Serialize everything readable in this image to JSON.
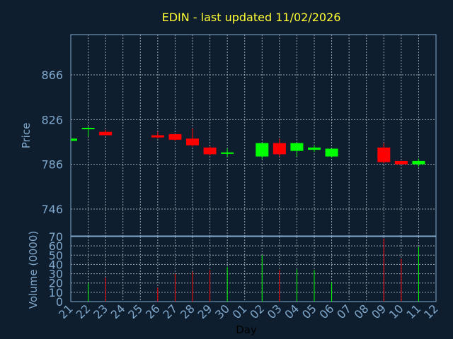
{
  "chart_data": {
    "type": "candlestick",
    "title": "EDIN - last updated 11/02/2026",
    "xlabel": "Day",
    "price_panel": {
      "ylabel": "Price",
      "ylim": [
        722,
        902
      ],
      "yticks": [
        746,
        786,
        826,
        866
      ]
    },
    "volume_panel": {
      "ylabel": "Volume (0000)",
      "ylim": [
        0,
        70
      ],
      "yticks": [
        0,
        10,
        20,
        30,
        40,
        50,
        60,
        70
      ]
    },
    "x_ticks": [
      "21",
      "22",
      "23",
      "24",
      "25",
      "26",
      "27",
      "28",
      "29",
      "30",
      "01",
      "02",
      "03",
      "04",
      "05",
      "06",
      "07",
      "08",
      "09",
      "10",
      "11",
      "12"
    ],
    "colors": {
      "up": "#00ff00",
      "down": "#ff0000",
      "background": "#0f1e2f",
      "title": "#ffff33",
      "axis": "#7fa8cc"
    },
    "candles": [
      {
        "x": 0,
        "open": 807,
        "high": 809,
        "low": 806,
        "close": 809,
        "volume": 0
      },
      {
        "x": 1,
        "open": 817,
        "high": 820,
        "low": 811,
        "close": 818,
        "volume": 20
      },
      {
        "x": 2,
        "open": 815,
        "high": 817,
        "low": 812,
        "close": 812,
        "volume": 26
      },
      {
        "x": 5,
        "open": 812,
        "high": 815,
        "low": 809,
        "close": 810,
        "volume": 15
      },
      {
        "x": 6,
        "open": 813,
        "high": 813,
        "low": 807,
        "close": 808,
        "volume": 30
      },
      {
        "x": 7,
        "open": 809,
        "high": 818,
        "low": 802,
        "close": 803,
        "volume": 32
      },
      {
        "x": 8,
        "open": 801,
        "high": 802,
        "low": 794,
        "close": 795,
        "volume": 34
      },
      {
        "x": 9,
        "open": 795,
        "high": 800,
        "low": 793,
        "close": 796,
        "volume": 37
      },
      {
        "x": 11,
        "open": 793,
        "high": 805,
        "low": 791,
        "close": 805,
        "volume": 50
      },
      {
        "x": 12,
        "open": 805,
        "high": 809,
        "low": 793,
        "close": 795,
        "volume": 34
      },
      {
        "x": 13,
        "open": 798,
        "high": 805,
        "low": 793,
        "close": 805,
        "volume": 35
      },
      {
        "x": 14,
        "open": 799,
        "high": 803,
        "low": 797,
        "close": 801,
        "volume": 34
      },
      {
        "x": 15,
        "open": 793,
        "high": 800,
        "low": 792,
        "close": 800,
        "volume": 21
      },
      {
        "x": 18,
        "open": 801,
        "high": 805,
        "low": 787,
        "close": 788,
        "volume": 68
      },
      {
        "x": 19,
        "open": 789,
        "high": 789,
        "low": 786,
        "close": 786,
        "volume": 46
      },
      {
        "x": 20,
        "open": 786,
        "high": 791,
        "low": 784,
        "close": 789,
        "volume": 59
      }
    ]
  }
}
